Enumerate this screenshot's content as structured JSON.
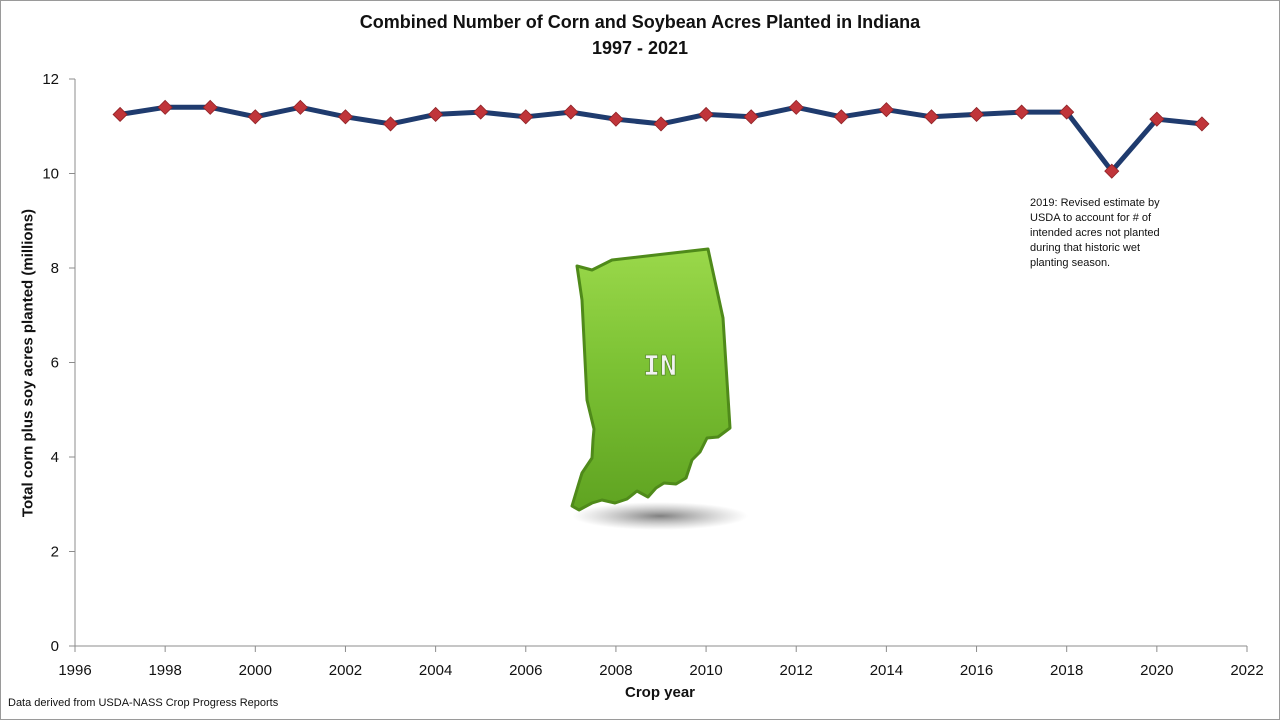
{
  "chart_data": {
    "type": "line",
    "title": "Combined Number of Corn and Soybean Acres Planted in Indiana",
    "subtitle": "1997 - 2021",
    "xlabel": "Crop year",
    "ylabel": "Total corn plus soy acres planted (millions)",
    "xlim": [
      1996,
      2022
    ],
    "ylim": [
      0,
      12
    ],
    "xticks": [
      1996,
      1998,
      2000,
      2002,
      2004,
      2006,
      2008,
      2010,
      2012,
      2014,
      2016,
      2018,
      2020,
      2022
    ],
    "yticks": [
      0,
      2,
      4,
      6,
      8,
      10,
      12
    ],
    "grid": false,
    "series": [
      {
        "x": [
          1997,
          1998,
          1999,
          2000,
          2001,
          2002,
          2003,
          2004,
          2005,
          2006,
          2007,
          2008,
          2009,
          2010,
          2011,
          2012,
          2013,
          2014,
          2015,
          2016,
          2017,
          2018,
          2019,
          2020,
          2021
        ],
        "y": [
          11.25,
          11.4,
          11.4,
          11.2,
          11.4,
          11.2,
          11.05,
          11.25,
          11.3,
          11.2,
          11.3,
          11.15,
          11.05,
          11.25,
          11.2,
          11.4,
          11.2,
          11.35,
          11.2,
          11.25,
          11.3,
          11.3,
          10.05,
          11.15,
          11.05
        ],
        "line_color": "#1f3b6e",
        "marker_color": "#c0353a"
      }
    ],
    "annotation": "2019: Revised estimate by USDA to account for # of intended acres not planted during that historic wet planting season.",
    "inset_label": "IN"
  },
  "source_note": "Data derived from USDA-NASS Crop Progress Reports",
  "colors": {
    "line": "#1f3b6e",
    "marker": "#c0353a",
    "state_fill": "#7cc234",
    "state_edge": "#4f8a1a"
  }
}
